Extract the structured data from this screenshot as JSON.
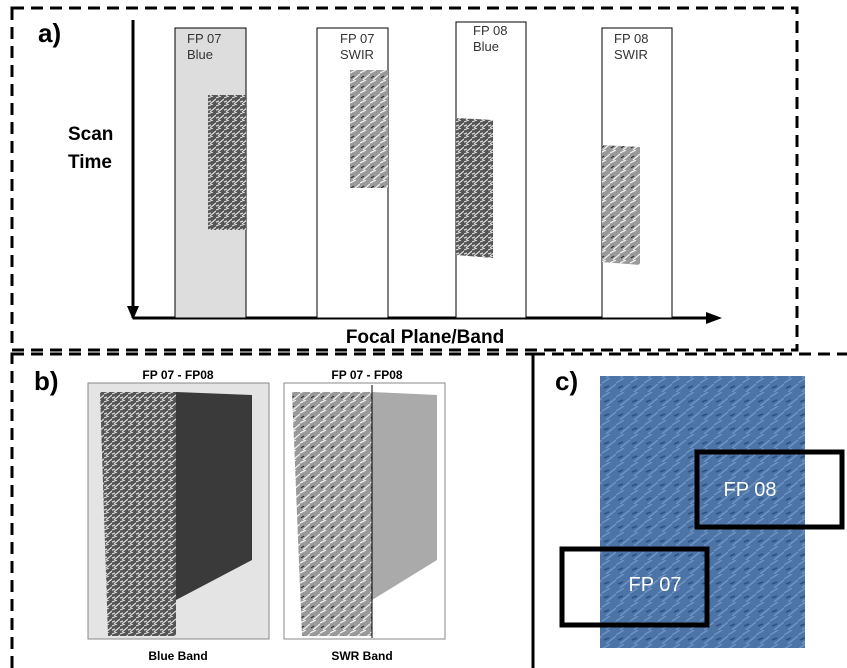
{
  "panel_a": {
    "label": "a)",
    "y_axis": [
      "Scan",
      "Time"
    ],
    "x_axis": "Focal Plane/Band",
    "strips": [
      [
        "FP 07",
        "Blue"
      ],
      [
        "FP 07",
        "SWIR"
      ],
      [
        "FP 08",
        "Blue"
      ],
      [
        "FP 08",
        "SWIR"
      ]
    ]
  },
  "panel_b": {
    "label": "b)",
    "images": [
      {
        "title": "FP 07 - FP08",
        "caption": "Blue Band"
      },
      {
        "title": "FP 07 - FP08",
        "caption": "SWR Band"
      }
    ]
  },
  "panel_c": {
    "label": "c)",
    "boxes": [
      "FP 08",
      "FP 07"
    ]
  }
}
